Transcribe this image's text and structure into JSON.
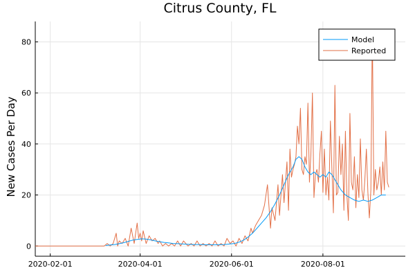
{
  "chart_data": {
    "type": "line",
    "title": "Citrus County, FL",
    "xlabel": "",
    "ylabel": "New Cases Per Day",
    "x_axis_type": "date",
    "xlim": [
      "2020-01-22",
      "2020-09-25"
    ],
    "ylim": [
      -4,
      88
    ],
    "x_ticks": [
      "2020-02-01",
      "2020-04-01",
      "2020-06-01",
      "2020-08-01"
    ],
    "y_ticks": [
      0,
      20,
      40,
      60,
      80
    ],
    "grid": true,
    "legend_position": "top-right",
    "series": [
      {
        "name": "Model",
        "color": "#009af9",
        "x": [
          "2020-03-09",
          "2020-03-12",
          "2020-03-15",
          "2020-03-18",
          "2020-03-21",
          "2020-03-24",
          "2020-03-27",
          "2020-03-30",
          "2020-04-02",
          "2020-04-05",
          "2020-04-08",
          "2020-04-11",
          "2020-04-14",
          "2020-04-17",
          "2020-04-20",
          "2020-04-23",
          "2020-04-26",
          "2020-04-29",
          "2020-05-03",
          "2020-05-07",
          "2020-05-11",
          "2020-05-15",
          "2020-05-19",
          "2020-05-23",
          "2020-05-27",
          "2020-05-31",
          "2020-06-03",
          "2020-06-06",
          "2020-06-09",
          "2020-06-12",
          "2020-06-15",
          "2020-06-18",
          "2020-06-21",
          "2020-06-24",
          "2020-06-27",
          "2020-06-30",
          "2020-07-03",
          "2020-07-06",
          "2020-07-09",
          "2020-07-12",
          "2020-07-14",
          "2020-07-16",
          "2020-07-18",
          "2020-07-20",
          "2020-07-22",
          "2020-07-24",
          "2020-07-26",
          "2020-07-28",
          "2020-07-30",
          "2020-08-01",
          "2020-08-03",
          "2020-08-05",
          "2020-08-07",
          "2020-08-09",
          "2020-08-11",
          "2020-08-13",
          "2020-08-16",
          "2020-08-19",
          "2020-08-22",
          "2020-08-25",
          "2020-08-28",
          "2020-08-31",
          "2020-09-03",
          "2020-09-06",
          "2020-09-09",
          "2020-09-12"
        ],
        "values": [
          0.2,
          0.4,
          0.6,
          0.9,
          1.3,
          1.8,
          2.3,
          2.6,
          2.8,
          2.7,
          2.4,
          2.0,
          1.7,
          1.4,
          1.2,
          1.0,
          0.9,
          0.8,
          0.7,
          0.6,
          0.6,
          0.5,
          0.5,
          0.5,
          0.6,
          0.8,
          1.0,
          1.5,
          2.3,
          3.5,
          5.0,
          7.0,
          9.0,
          11.0,
          13.5,
          16.5,
          20.0,
          24.0,
          28.0,
          31.0,
          34.0,
          35.0,
          34.0,
          31.0,
          29.0,
          28.0,
          29.0,
          28.0,
          27.0,
          28.0,
          27.0,
          29.0,
          28.0,
          26.0,
          24.0,
          22.0,
          20.0,
          19.0,
          18.0,
          17.5,
          18.0,
          17.5,
          18.0,
          19.0,
          20.0,
          20.0
        ]
      },
      {
        "name": "Reported",
        "color": "#e26f46",
        "x": [
          "2020-01-22",
          "2020-03-08",
          "2020-03-10",
          "2020-03-12",
          "2020-03-14",
          "2020-03-16",
          "2020-03-17",
          "2020-03-18",
          "2020-03-20",
          "2020-03-22",
          "2020-03-24",
          "2020-03-26",
          "2020-03-28",
          "2020-03-30",
          "2020-03-31",
          "2020-04-01",
          "2020-04-02",
          "2020-04-03",
          "2020-04-05",
          "2020-04-07",
          "2020-04-09",
          "2020-04-11",
          "2020-04-13",
          "2020-04-14",
          "2020-04-16",
          "2020-04-18",
          "2020-04-20",
          "2020-04-22",
          "2020-04-24",
          "2020-04-26",
          "2020-04-28",
          "2020-04-30",
          "2020-05-03",
          "2020-05-05",
          "2020-05-07",
          "2020-05-09",
          "2020-05-11",
          "2020-05-13",
          "2020-05-15",
          "2020-05-17",
          "2020-05-19",
          "2020-05-21",
          "2020-05-23",
          "2020-05-25",
          "2020-05-27",
          "2020-05-29",
          "2020-05-31",
          "2020-06-02",
          "2020-06-04",
          "2020-06-06",
          "2020-06-08",
          "2020-06-10",
          "2020-06-12",
          "2020-06-14",
          "2020-06-15",
          "2020-06-17",
          "2020-06-19",
          "2020-06-21",
          "2020-06-23",
          "2020-06-25",
          "2020-06-27",
          "2020-06-28",
          "2020-06-30",
          "2020-07-02",
          "2020-07-03",
          "2020-07-05",
          "2020-07-06",
          "2020-07-08",
          "2020-07-09",
          "2020-07-10",
          "2020-07-11",
          "2020-07-12",
          "2020-07-13",
          "2020-07-14",
          "2020-07-15",
          "2020-07-16",
          "2020-07-17",
          "2020-07-18",
          "2020-07-19",
          "2020-07-20",
          "2020-07-21",
          "2020-07-22",
          "2020-07-23",
          "2020-07-24",
          "2020-07-25",
          "2020-07-26",
          "2020-07-27",
          "2020-07-28",
          "2020-07-29",
          "2020-07-30",
          "2020-07-31",
          "2020-08-01",
          "2020-08-02",
          "2020-08-03",
          "2020-08-04",
          "2020-08-05",
          "2020-08-06",
          "2020-08-07",
          "2020-08-08",
          "2020-08-09",
          "2020-08-10",
          "2020-08-11",
          "2020-08-12",
          "2020-08-13",
          "2020-08-14",
          "2020-08-15",
          "2020-08-16",
          "2020-08-17",
          "2020-08-18",
          "2020-08-19",
          "2020-08-20",
          "2020-08-21",
          "2020-08-22",
          "2020-08-23",
          "2020-08-24",
          "2020-08-25",
          "2020-08-26",
          "2020-08-27",
          "2020-08-28",
          "2020-08-29",
          "2020-08-30",
          "2020-08-31",
          "2020-09-01",
          "2020-09-02",
          "2020-09-03",
          "2020-09-04",
          "2020-09-05",
          "2020-09-06",
          "2020-09-07",
          "2020-09-08",
          "2020-09-09",
          "2020-09-10",
          "2020-09-11",
          "2020-09-12",
          "2020-09-13",
          "2020-09-14"
        ],
        "values": [
          0,
          0,
          1,
          0,
          1,
          5,
          0,
          2,
          1,
          3,
          0,
          7,
          1,
          9,
          3,
          5,
          2,
          6,
          1,
          4,
          2,
          3,
          1,
          2,
          0,
          1,
          0,
          1,
          0,
          2,
          0,
          2,
          0,
          1,
          0,
          2,
          0,
          1,
          0,
          1,
          0,
          2,
          0,
          1,
          0,
          3,
          1,
          2,
          0,
          3,
          1,
          4,
          2,
          7,
          5,
          8,
          10,
          12,
          16,
          24,
          7,
          15,
          10,
          24,
          12,
          28,
          17,
          33,
          14,
          38,
          27,
          30,
          32,
          35,
          47,
          40,
          54,
          30,
          28,
          35,
          32,
          56,
          25,
          36,
          60,
          19,
          28,
          30,
          25,
          36,
          45,
          21,
          38,
          20,
          27,
          18,
          49,
          30,
          13,
          63,
          20,
          21,
          43,
          28,
          40,
          14,
          45,
          20,
          10,
          52,
          25,
          22,
          35,
          15,
          28,
          19,
          42,
          22,
          18,
          26,
          38,
          21,
          11,
          22,
          85,
          20,
          30,
          22,
          25,
          31,
          20,
          33,
          22,
          45,
          25,
          23
        ]
      }
    ]
  }
}
